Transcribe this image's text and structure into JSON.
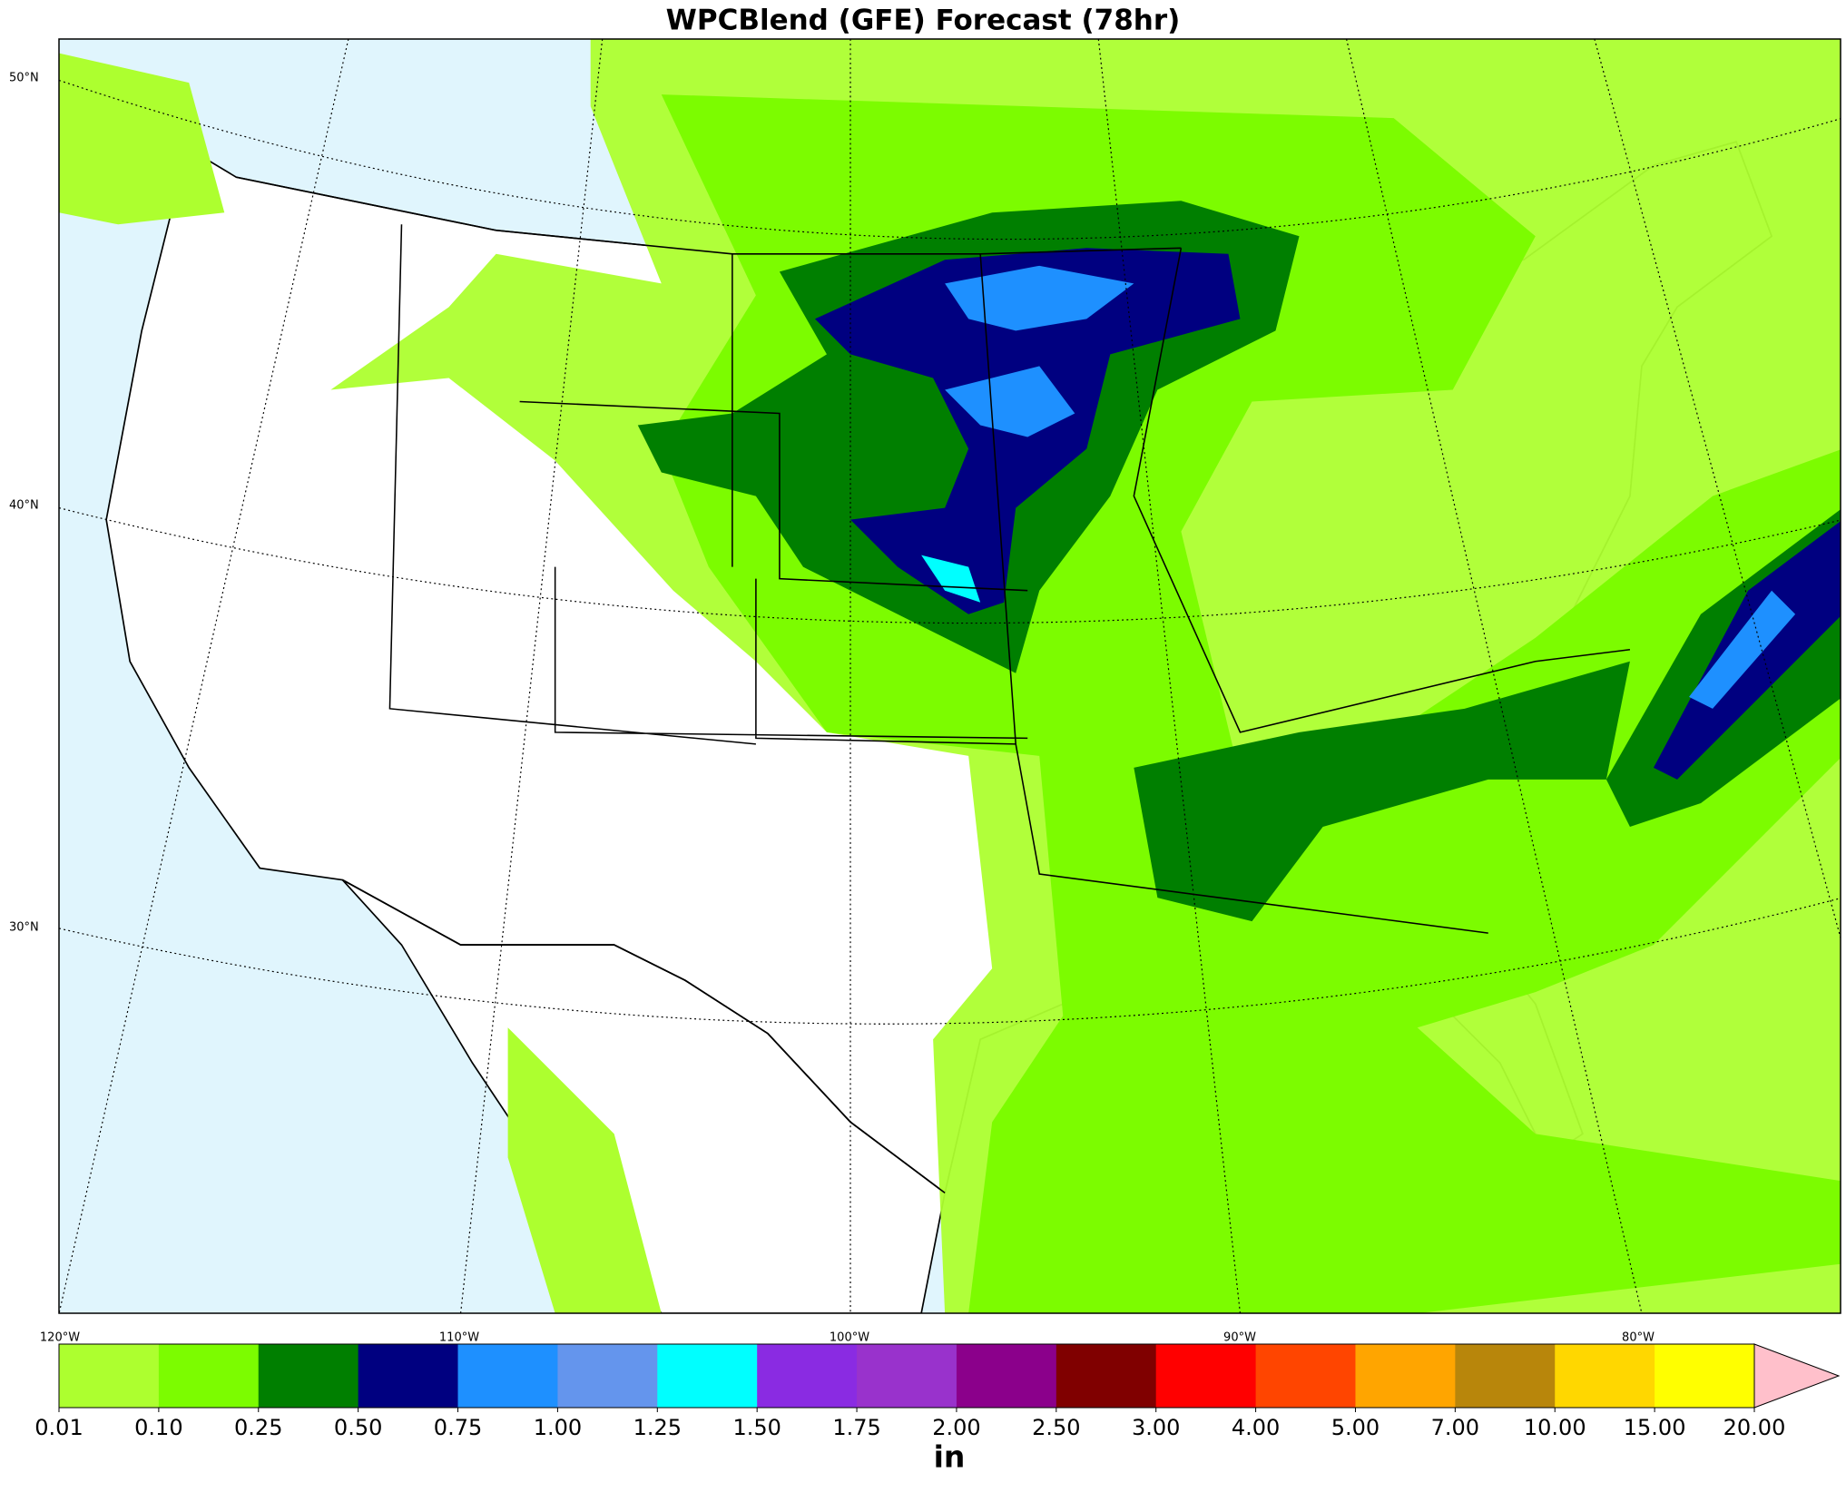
{
  "title": "WPCBlend (GFE) Forecast (78hr)",
  "lat_labels": [
    "50°N",
    "40°N",
    "30°N"
  ],
  "lon_labels": [
    "120°W",
    "110°W",
    "100°W",
    "90°W",
    "80°W"
  ],
  "colorbar": {
    "ticks": [
      "0.01",
      "0.10",
      "0.25",
      "0.50",
      "0.75",
      "1.00",
      "1.25",
      "1.50",
      "1.75",
      "2.00",
      "2.50",
      "3.00",
      "4.00",
      "5.00",
      "7.00",
      "10.00",
      "15.00",
      "20.00"
    ],
    "colors": [
      "#adff2f",
      "#7cfc00",
      "#007f00",
      "#000080",
      "#1e90ff",
      "#6495ed",
      "#00ffff",
      "#8a2be2",
      "#9932cc",
      "#8b008b",
      "#800000",
      "#ff0000",
      "#ff4500",
      "#ffa500",
      "#b8860b",
      "#ffd700",
      "#ffff00"
    ],
    "extend_color": "#ffc0cb",
    "unit": "in"
  }
}
